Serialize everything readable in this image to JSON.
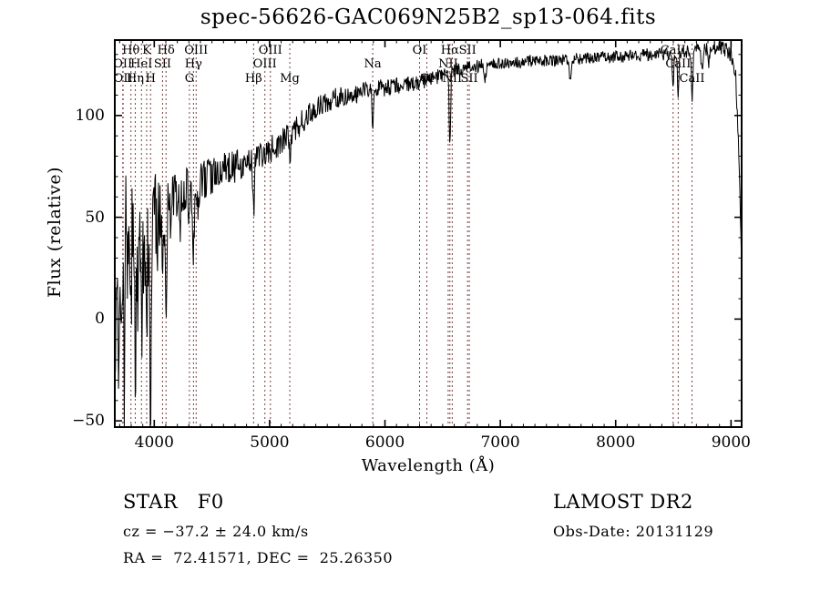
{
  "chart_data": {
    "type": "line",
    "title": "spec-56626-GAC069N25B2_sp13-064.fits",
    "xlabel": "Wavelength (Å)",
    "ylabel": "Flux (relative)",
    "xlim": [
      3650,
      9100
    ],
    "ylim": [
      -53.5,
      137.5
    ],
    "x_ticks": [
      4000,
      5000,
      6000,
      7000,
      8000,
      9000
    ],
    "x_minor_step": 100,
    "y_ticks": [
      -50,
      0,
      50,
      100
    ],
    "y_minor_step": 10,
    "grid": false,
    "legend": "none",
    "line_color": "#000000",
    "marker_line_color": "#7a4040",
    "series_name": "flux",
    "continuum": [
      [
        3650,
        42
      ],
      [
        3700,
        45
      ],
      [
        3760,
        47
      ],
      [
        3850,
        46
      ],
      [
        3950,
        50
      ],
      [
        4050,
        54
      ],
      [
        4150,
        60
      ],
      [
        4250,
        64
      ],
      [
        4350,
        64
      ],
      [
        4450,
        69
      ],
      [
        4550,
        72
      ],
      [
        4650,
        74
      ],
      [
        4750,
        76
      ],
      [
        4850,
        79
      ],
      [
        4950,
        81
      ],
      [
        5050,
        85
      ],
      [
        5150,
        89
      ],
      [
        5250,
        95
      ],
      [
        5350,
        101
      ],
      [
        5450,
        105
      ],
      [
        5550,
        108
      ],
      [
        5650,
        110
      ],
      [
        5750,
        111
      ],
      [
        5850,
        112
      ],
      [
        5950,
        113
      ],
      [
        6050,
        114
      ],
      [
        6150,
        115
      ],
      [
        6250,
        116
      ],
      [
        6350,
        117
      ],
      [
        6450,
        119
      ],
      [
        6550,
        121
      ],
      [
        6650,
        123
      ],
      [
        6750,
        124
      ],
      [
        6900,
        125
      ],
      [
        7100,
        126
      ],
      [
        7300,
        127
      ],
      [
        7500,
        127
      ],
      [
        7700,
        128
      ],
      [
        7900,
        129
      ],
      [
        8100,
        129
      ],
      [
        8300,
        130
      ],
      [
        8500,
        130
      ],
      [
        8700,
        132
      ],
      [
        8900,
        134
      ],
      [
        9000,
        130
      ],
      [
        9040,
        120
      ],
      [
        9070,
        80
      ],
      [
        9100,
        5
      ]
    ],
    "noise_halfamp": [
      [
        3650,
        60
      ],
      [
        3700,
        42
      ],
      [
        3800,
        38
      ],
      [
        3900,
        32
      ],
      [
        4000,
        22
      ],
      [
        4100,
        18
      ],
      [
        4200,
        13
      ],
      [
        4300,
        11
      ],
      [
        4500,
        9
      ],
      [
        4700,
        8
      ],
      [
        5000,
        7
      ],
      [
        5300,
        6
      ],
      [
        5600,
        5
      ],
      [
        6000,
        4.5
      ],
      [
        6500,
        3.5
      ],
      [
        7000,
        3
      ],
      [
        8000,
        3
      ],
      [
        8800,
        3.5
      ],
      [
        9100,
        4
      ]
    ],
    "absorption_features": [
      [
        3662,
        75,
        6
      ],
      [
        3692,
        55,
        5
      ],
      [
        3712,
        40,
        4
      ],
      [
        3727,
        45,
        5
      ],
      [
        3742,
        65,
        6
      ],
      [
        3770,
        40,
        5
      ],
      [
        3798,
        60,
        6
      ],
      [
        3820,
        35,
        4
      ],
      [
        3835,
        70,
        6
      ],
      [
        3860,
        30,
        4
      ],
      [
        3889,
        55,
        6
      ],
      [
        3912,
        30,
        4
      ],
      [
        3934,
        60,
        6
      ],
      [
        3968,
        95,
        7
      ],
      [
        4026,
        25,
        5
      ],
      [
        4072,
        25,
        5
      ],
      [
        4102,
        50,
        8
      ],
      [
        4144,
        18,
        5
      ],
      [
        4226,
        22,
        5
      ],
      [
        4305,
        14,
        8
      ],
      [
        4340,
        28,
        7
      ],
      [
        4383,
        14,
        5
      ],
      [
        4861,
        27,
        6
      ],
      [
        5175,
        9,
        8
      ],
      [
        5893,
        18,
        5
      ],
      [
        6563,
        37,
        6
      ],
      [
        6867,
        7,
        8
      ],
      [
        7605,
        8,
        10
      ],
      [
        8498,
        17,
        6
      ],
      [
        8542,
        21,
        6
      ],
      [
        8662,
        24,
        6
      ],
      [
        8750,
        12,
        7
      ],
      [
        8805,
        10,
        6
      ]
    ],
    "line_markers": [
      {
        "label": "OII",
        "wavelength": 3727,
        "row": 2
      },
      {
        "label": "OII",
        "wavelength": 3730,
        "row": 3
      },
      {
        "label": "Hθ",
        "wavelength": 3798,
        "row": 1
      },
      {
        "label": "Hη",
        "wavelength": 3835,
        "row": 3
      },
      {
        "label": "HeI",
        "wavelength": 3889,
        "row": 2
      },
      {
        "label": "K",
        "wavelength": 3934,
        "row": 1
      },
      {
        "label": "H",
        "wavelength": 3968,
        "row": 3
      },
      {
        "label": "SII",
        "wavelength": 4072,
        "row": 2
      },
      {
        "label": "Hδ",
        "wavelength": 4102,
        "row": 1
      },
      {
        "label": "G",
        "wavelength": 4305,
        "row": 3
      },
      {
        "label": "Hγ",
        "wavelength": 4340,
        "row": 2
      },
      {
        "label": "OIII",
        "wavelength": 4363,
        "row": 1
      },
      {
        "label": "Hβ",
        "wavelength": 4861,
        "row": 3
      },
      {
        "label": "OIII",
        "wavelength": 4959,
        "row": 2
      },
      {
        "label": "OIII",
        "wavelength": 5007,
        "row": 1
      },
      {
        "label": "Mg",
        "wavelength": 5175,
        "row": 3
      },
      {
        "label": "Na",
        "wavelength": 5894,
        "row": 2
      },
      {
        "label": "OI",
        "wavelength": 6300,
        "row": 1
      },
      {
        "label": "OI",
        "wavelength": 6363,
        "row": 3
      },
      {
        "label": "NII",
        "wavelength": 6548,
        "row": 2
      },
      {
        "label": "Hα",
        "wavelength": 6563,
        "row": 1
      },
      {
        "label": "NII",
        "wavelength": 6583,
        "row": 3
      },
      {
        "label": "SII",
        "wavelength": 6716,
        "row": 1
      },
      {
        "label": "SII",
        "wavelength": 6731,
        "row": 3
      },
      {
        "label": "CaII",
        "wavelength": 8498,
        "row": 1
      },
      {
        "label": "CaII",
        "wavelength": 8542,
        "row": 2
      },
      {
        "label": "CaII",
        "wavelength": 8662,
        "row": 3
      }
    ]
  },
  "annotations": {
    "class_label": "STAR   F0",
    "survey": "LAMOST DR2",
    "cz": "cz = −37.2 ± 24.0 km/s",
    "obs_date": "Obs-Date: 20131129",
    "coords": "RA =  72.41571, DEC =  25.26350"
  }
}
